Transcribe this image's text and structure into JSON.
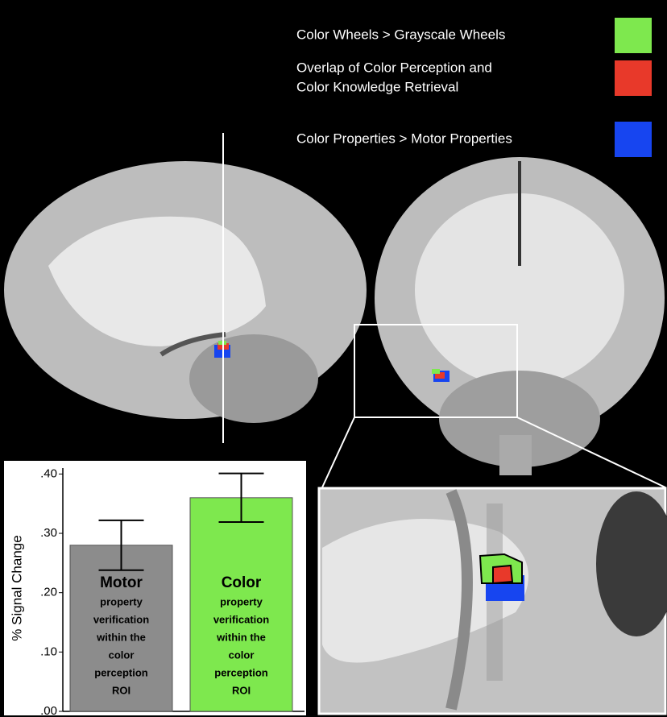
{
  "legend": [
    {
      "lines": [
        "Color Wheels  >  Grayscale Wheels"
      ],
      "color": "#7ee84e"
    },
    {
      "lines": [
        "Overlap of Color Perception and",
        "Color Knowledge Retrieval"
      ],
      "color": "#e8392a"
    },
    {
      "lines": [
        "Color Properties  >  Motor Properties"
      ],
      "color": "#1745f0"
    }
  ],
  "chart_data": {
    "type": "bar",
    "ylabel": "% Signal Change",
    "categories": [
      "Motor",
      "Color"
    ],
    "category_descriptions": [
      [
        "property",
        "verification",
        "within the",
        "color",
        "perception",
        "ROI"
      ],
      [
        "property",
        "verification",
        "within the",
        "color",
        "perception",
        "ROI"
      ]
    ],
    "values": [
      0.28,
      0.36
    ],
    "errors": [
      0.042,
      0.041
    ],
    "colors": [
      "#8c8c8c",
      "#7ee84e"
    ],
    "ylim": [
      0,
      0.41
    ],
    "yticks": [
      {
        "value": 0,
        "label": ".00"
      },
      {
        "value": 0.1,
        "label": ".10"
      },
      {
        "value": 0.2,
        "label": ".20"
      },
      {
        "value": 0.3,
        "label": ".30"
      },
      {
        "value": 0.4,
        "label": ".40"
      }
    ]
  }
}
